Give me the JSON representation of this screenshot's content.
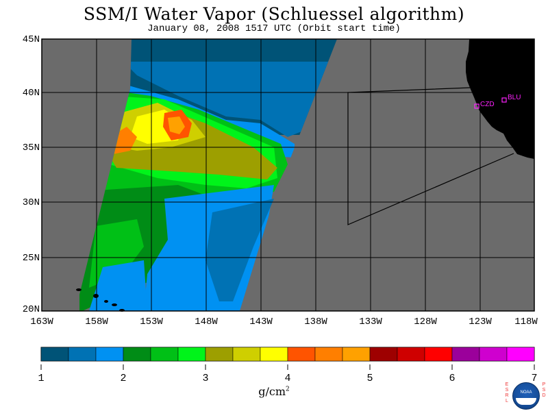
{
  "title": "SSM/I Water Vapor (Schluessel algorithm)",
  "subtitle": "January 08, 2008  1517 UTC  (Orbit start time)",
  "map": {
    "extent": {
      "lon_west": -163,
      "lon_east": -118,
      "lat_south": 20,
      "lat_north": 45
    },
    "lat_labels": [
      "45N",
      "40N",
      "35N",
      "30N",
      "25N",
      "20N"
    ],
    "lon_labels": [
      "163W",
      "158W",
      "153W",
      "148W",
      "143W",
      "138W",
      "133W",
      "128W",
      "123W",
      "118W"
    ],
    "gridlines": true,
    "colors": {
      "no_data": "#6b6b6b",
      "land": "#000000",
      "grid": "#000000"
    },
    "stations": [
      {
        "id": "CZD",
        "lon": -122.9,
        "lat": 38.6
      },
      {
        "id": "BLU",
        "lon": -120.8,
        "lat": 39.2
      }
    ],
    "station_color": "#ff22ff"
  },
  "colorbar": {
    "labels": [
      "1",
      "2",
      "3",
      "4",
      "5",
      "6",
      "7"
    ],
    "colors": [
      "#005377",
      "#0072b4",
      "#0091f2",
      "#008c16",
      "#00c016",
      "#00f41a",
      "#9d9f00",
      "#cfcf00",
      "#ffff00",
      "#ff5400",
      "#ff7f00",
      "#ffa100",
      "#9e0000",
      "#cf0000",
      "#ff0000",
      "#9b009b",
      "#cf00cf",
      "#ff00ff"
    ],
    "units": "g/cm",
    "units_exponent": "2"
  },
  "logo": {
    "left_letters": "ESRL",
    "right_letters": "PSD",
    "center_text": "NOAA"
  }
}
